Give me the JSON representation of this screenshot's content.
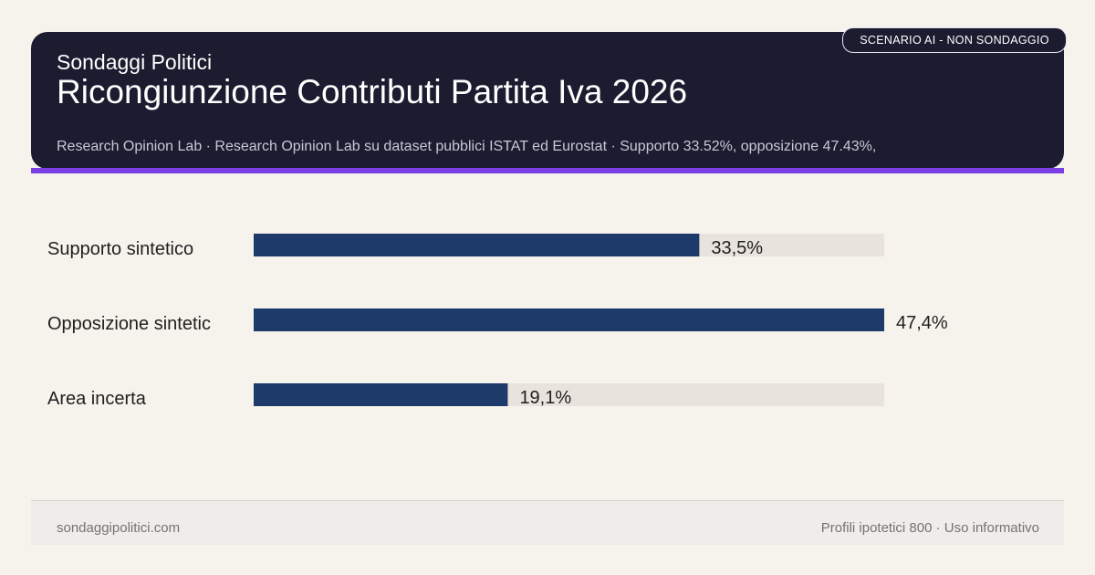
{
  "header": {
    "brand": "Sondaggi Politici",
    "title": "Ricongiunzione Contributi Partita Iva 2026",
    "subtitle": "Research Opinion Lab · Research Opinion Lab su dataset pubblici ISTAT ed Eurostat · Supporto 33.52%, opposizione 47.43%,",
    "badge": "SCENARIO AI - NON SONDAGGIO"
  },
  "colors": {
    "header_bg": "#1b1c30",
    "accent": "#7b3fe4",
    "bar": "#1e3a6b",
    "track": "#e8e3dc",
    "label": "#1f1f1f"
  },
  "chart_data": {
    "type": "bar",
    "orientation": "horizontal",
    "categories": [
      "Supporto sintetico",
      "Opposizione sintetic",
      "Area incerta"
    ],
    "values": [
      33.5,
      47.4,
      19.1
    ],
    "value_labels": [
      "33,5%",
      "47,4%",
      "19,1%"
    ],
    "unit": "%",
    "xlim": [
      0,
      47.4
    ],
    "title": "",
    "xlabel": "",
    "ylabel": ""
  },
  "footer": {
    "site": "sondaggipolitici.com",
    "note": "Profili ipotetici 800 · Uso informativo"
  }
}
